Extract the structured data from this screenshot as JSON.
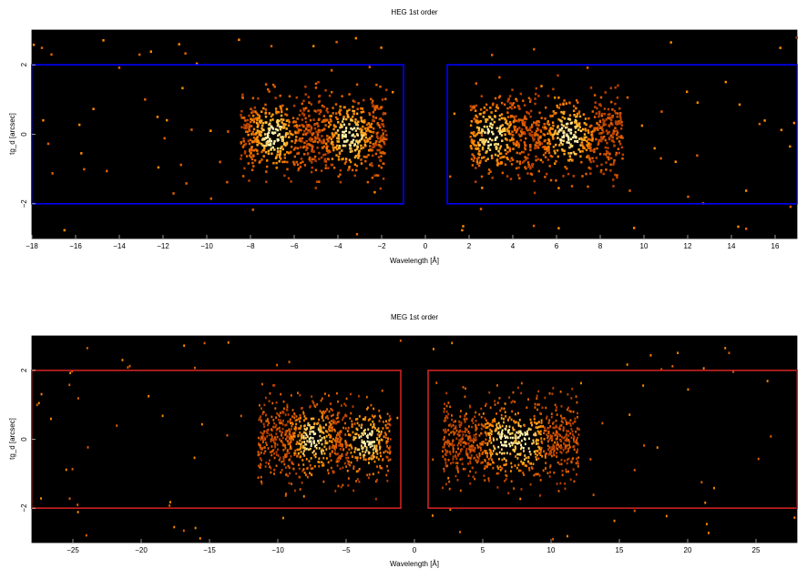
{
  "chart_data": [
    {
      "type": "heatmap",
      "title": "HEG 1st order",
      "xlabel": "Wavelength [Å]",
      "ylabel": "tg_d [arcsec]",
      "xlim": [
        -18,
        17
      ],
      "ylim": [
        -3,
        3
      ],
      "xticks": [
        -18,
        -16,
        -14,
        -12,
        -10,
        -8,
        -6,
        -4,
        -2,
        0,
        2,
        4,
        6,
        8,
        10,
        12,
        14,
        16
      ],
      "xtick_labels": [
        "−18",
        "−16",
        "−14",
        "−12",
        "−10",
        "−8",
        "−6",
        "−4",
        "−2",
        "0",
        "2",
        "4",
        "6",
        "8",
        "10",
        "12",
        "14",
        "16"
      ],
      "yticks": [
        -2,
        0,
        2
      ],
      "ytick_labels": [
        "−2",
        "0",
        "2"
      ],
      "background": "#000000",
      "box_color": "#0000ff",
      "regions": [
        {
          "x": [
            -18,
            -1
          ],
          "y": [
            -2,
            2
          ]
        },
        {
          "x": [
            1,
            17
          ],
          "y": [
            -2,
            2
          ]
        }
      ],
      "clusters": [
        {
          "x_range": [
            -8.5,
            -1.8
          ],
          "center": -5.5,
          "peak_at": [
            -7.0,
            -3.5
          ],
          "density": 0.55
        },
        {
          "x_range": [
            2.0,
            9.0
          ],
          "center": 5.5,
          "peak_at": [
            3.0,
            6.5
          ],
          "density": 0.55
        }
      ],
      "grid": false
    },
    {
      "type": "heatmap",
      "title": "MEG 1st order",
      "xlabel": "Wavelength [Å]",
      "ylabel": "tg_d [arcsec]",
      "xlim": [
        -28,
        28
      ],
      "ylim": [
        -3,
        3
      ],
      "xticks": [
        -25,
        -20,
        -15,
        -10,
        -5,
        0,
        5,
        10,
        15,
        20,
        25
      ],
      "xtick_labels": [
        "−25",
        "−20",
        "−15",
        "−10",
        "−5",
        "0",
        "5",
        "10",
        "15",
        "20",
        "25"
      ],
      "yticks": [
        -2,
        0,
        2
      ],
      "ytick_labels": [
        "−2",
        "0",
        "2"
      ],
      "background": "#000000",
      "box_color": "#cc2222",
      "regions": [
        {
          "x": [
            -28,
            -1
          ],
          "y": [
            -2,
            2
          ]
        },
        {
          "x": [
            1,
            28
          ],
          "y": [
            -2,
            2
          ]
        }
      ],
      "clusters": [
        {
          "x_range": [
            -11.5,
            -1.8
          ],
          "center": -7.0,
          "peak_at": [
            -7.5,
            -3.5
          ],
          "density": 0.6
        },
        {
          "x_range": [
            2.0,
            12.0
          ],
          "center": 6.5,
          "peak_at": [
            6.5,
            8.0
          ],
          "density": 0.6
        }
      ],
      "grid": false
    }
  ]
}
